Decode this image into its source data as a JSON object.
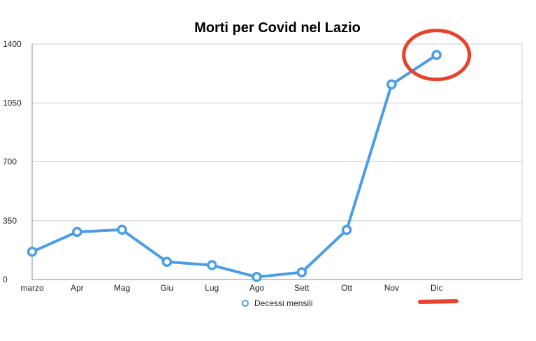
{
  "chart_data": {
    "type": "line",
    "title": "Morti per Covid nel Lazio",
    "xlabel": "",
    "ylabel": "",
    "categories": [
      "marzo",
      "Apr",
      "Mag",
      "Giu",
      "Lug",
      "Ago",
      "Sett",
      "Ott",
      "Nov",
      "Dic"
    ],
    "ylim": [
      0,
      1400
    ],
    "yticks": [
      "0",
      "350",
      "700",
      "1050",
      "1400"
    ],
    "grid": true,
    "legend_position": "bottom",
    "series": [
      {
        "name": "Decessi mensili",
        "color": "#4a9ee8",
        "values": [
          165,
          283,
          296,
          105,
          85,
          15,
          43,
          295,
          1160,
          1335
        ]
      }
    ],
    "annotations": [
      {
        "type": "circle",
        "target_category": "Dic",
        "color": "#e8412c"
      },
      {
        "type": "line-mark",
        "position": "bottom-right",
        "color": "#e8412c"
      }
    ]
  }
}
